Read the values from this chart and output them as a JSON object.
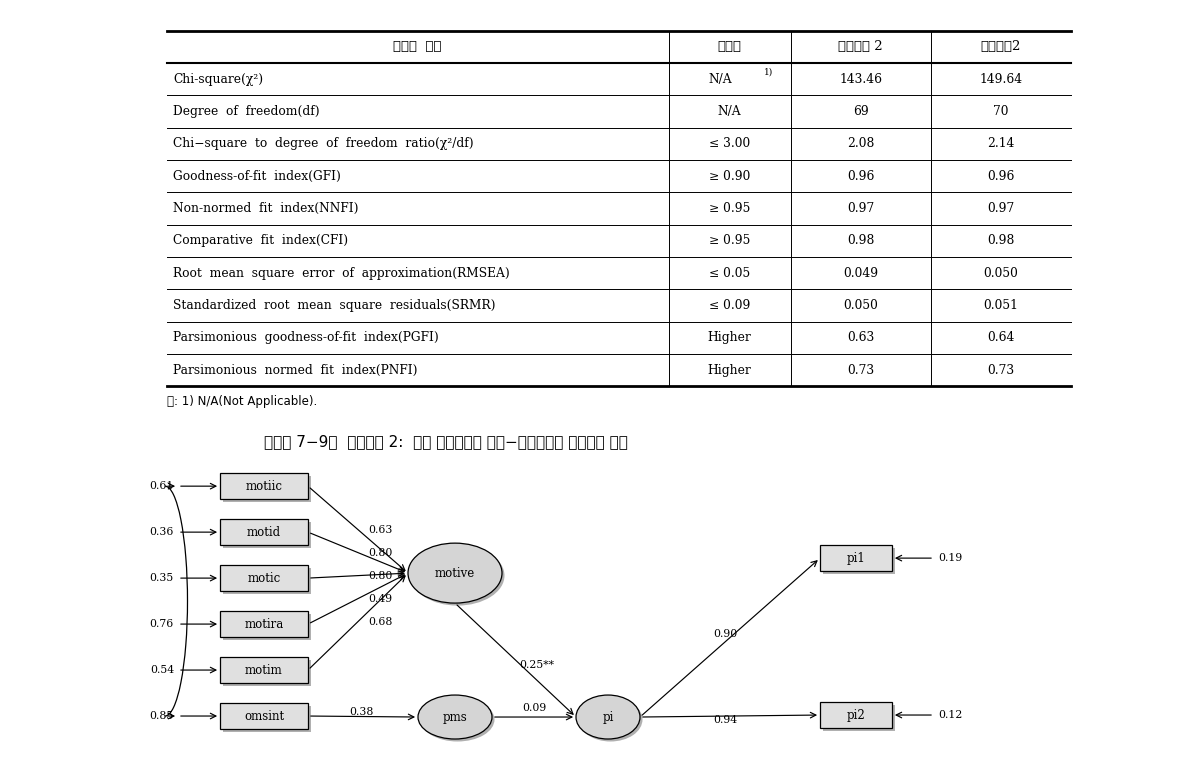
{
  "table_headers": [
    "적합도  지수",
    "추천값",
    "구조모델 2",
    "경쟁모델2"
  ],
  "table_rows": [
    [
      "Chi-square(χ²)",
      "N/A",
      "143.46",
      "149.64"
    ],
    [
      "Degree  of  freedom(df)",
      "N/A",
      "69",
      "70"
    ],
    [
      "Chi−square  to  degree  of  freedom  ratio(χ²/df)",
      "≤ 3.00",
      "2.08",
      "2.14"
    ],
    [
      "Goodness-of-fit  index(GFI)",
      "≥ 0.90",
      "0.96",
      "0.96"
    ],
    [
      "Non-normed  fit  index(NNFI)",
      "≥ 0.95",
      "0.97",
      "0.97"
    ],
    [
      "Comparative  fit  index(CFI)",
      "≥ 0.95",
      "0.98",
      "0.98"
    ],
    [
      "Root  mean  square  error  of  approximation(RMSEA)",
      "≤ 0.05",
      "0.049",
      "0.050"
    ],
    [
      "Standardized  root  mean  square  residuals(SRMR)",
      "≤ 0.09",
      "0.050",
      "0.051"
    ],
    [
      "Parsimonious  goodness-of-fit  index(PGFI)",
      "Higher",
      "0.63",
      "0.64"
    ],
    [
      "Parsimonious  normed  fit  index(PNFI)",
      "Higher",
      "0.73",
      "0.73"
    ]
  ],
  "footnote": "주: 1) N/A(Not Applicable).",
  "diagram_title": "［그림 7−9］  구조모델 2:  기초 구조방정식 모델−경쟁매체가 인터넷인 경우",
  "bg_color": "#ffffff",
  "text_color": "#000000"
}
